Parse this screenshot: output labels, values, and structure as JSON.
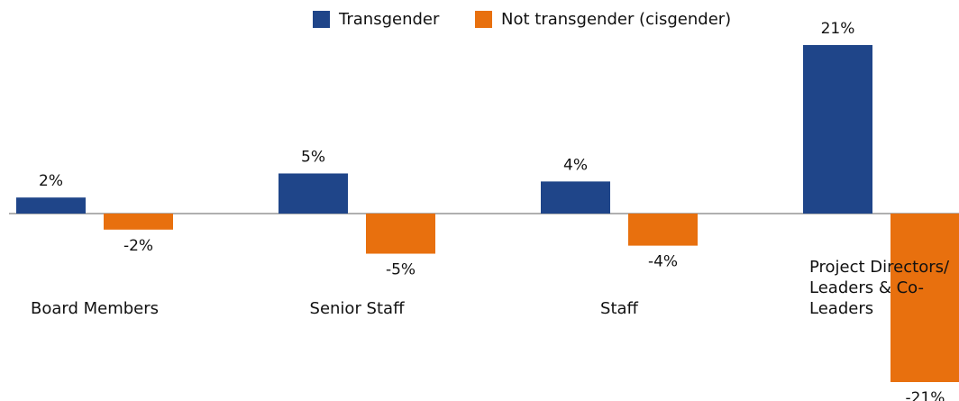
{
  "chart_data": {
    "type": "bar",
    "categories": [
      "Board Members",
      "Senior Staff",
      "Staff",
      "Project Directors/ Leaders & Co-Leaders"
    ],
    "series": [
      {
        "name": "Transgender",
        "color": "#1f4589",
        "values": [
          2,
          5,
          4,
          21
        ],
        "value_labels": [
          "2%",
          "5%",
          "4%",
          "21%"
        ]
      },
      {
        "name": "Not transgender (cisgender)",
        "color": "#e8700e",
        "values": [
          -2,
          -5,
          -4,
          -21
        ],
        "value_labels": [
          "-2%",
          "-5%",
          "-4%",
          "-21%"
        ]
      }
    ],
    "legend": "top"
  }
}
